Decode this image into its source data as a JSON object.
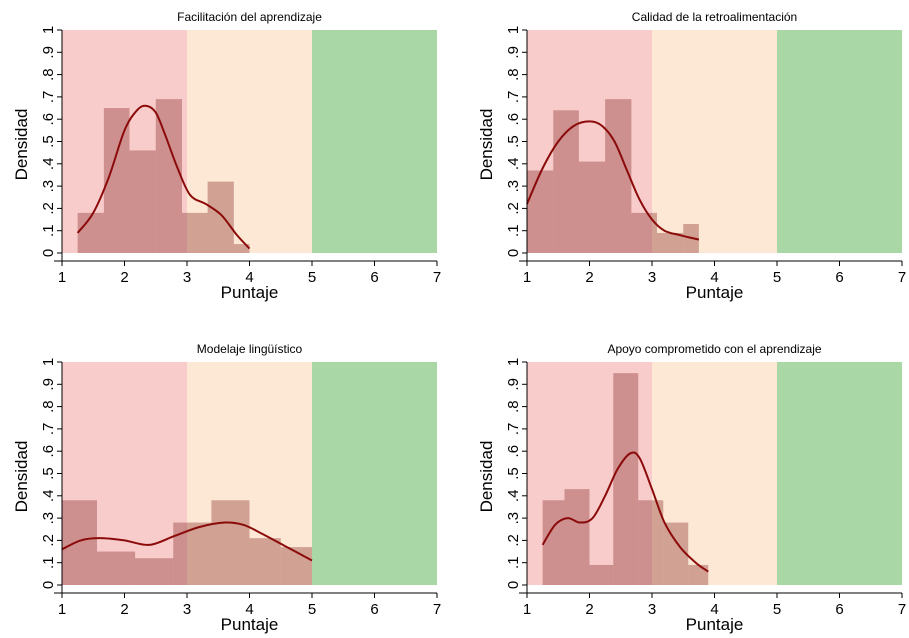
{
  "figure": {
    "zone_colors": {
      "low": "#f9cccc",
      "mid": "#fde8d5",
      "high": "#a9d8a6"
    },
    "bar_color": "#7f1d1d",
    "bar_opacity": 0.35,
    "curve_color": "#8b0a0a"
  },
  "chart_data": [
    {
      "type": "histogram",
      "title": "Facilitación del aprendizaje",
      "xlabel": "Puntaje",
      "ylabel": "Densidad",
      "xlim": [
        1,
        7
      ],
      "ylim": [
        0,
        1
      ],
      "x_ticks": [
        "1",
        "2",
        "3",
        "4",
        "5",
        "6",
        "7"
      ],
      "y_ticks": [
        "0",
        ".1",
        ".2",
        ".3",
        ".4",
        ".5",
        ".6",
        ".7",
        ".8",
        ".9",
        "1"
      ],
      "zones": [
        {
          "from": 1,
          "to": 3,
          "level": "low"
        },
        {
          "from": 3,
          "to": 5,
          "level": "mid"
        },
        {
          "from": 5,
          "to": 7,
          "level": "high"
        }
      ],
      "bins": [
        {
          "x0": 1.25,
          "x1": 1.67,
          "density": 0.18
        },
        {
          "x0": 1.67,
          "x1": 2.08,
          "density": 0.65
        },
        {
          "x0": 2.08,
          "x1": 2.5,
          "density": 0.46
        },
        {
          "x0": 2.5,
          "x1": 2.92,
          "density": 0.69
        },
        {
          "x0": 2.92,
          "x1": 3.33,
          "density": 0.18
        },
        {
          "x0": 3.33,
          "x1": 3.75,
          "density": 0.32
        },
        {
          "x0": 3.75,
          "x1": 4.0,
          "density": 0.04
        }
      ],
      "density_curve": [
        [
          1.25,
          0.09
        ],
        [
          1.5,
          0.18
        ],
        [
          1.75,
          0.34
        ],
        [
          2.0,
          0.55
        ],
        [
          2.2,
          0.64
        ],
        [
          2.35,
          0.66
        ],
        [
          2.5,
          0.63
        ],
        [
          2.65,
          0.53
        ],
        [
          2.85,
          0.38
        ],
        [
          3.05,
          0.26
        ],
        [
          3.3,
          0.22
        ],
        [
          3.55,
          0.17
        ],
        [
          3.8,
          0.08
        ],
        [
          4.0,
          0.02
        ]
      ]
    },
    {
      "type": "histogram",
      "title": "Calidad de la retroalimentación",
      "xlabel": "Puntaje",
      "ylabel": "Densidad",
      "xlim": [
        1,
        7
      ],
      "ylim": [
        0,
        1
      ],
      "x_ticks": [
        "1",
        "2",
        "3",
        "4",
        "5",
        "6",
        "7"
      ],
      "y_ticks": [
        "0",
        ".1",
        ".2",
        ".3",
        ".4",
        ".5",
        ".6",
        ".7",
        ".8",
        ".9",
        "1"
      ],
      "zones": [
        {
          "from": 1,
          "to": 3,
          "level": "low"
        },
        {
          "from": 3,
          "to": 5,
          "level": "mid"
        },
        {
          "from": 5,
          "to": 7,
          "level": "high"
        }
      ],
      "bins": [
        {
          "x0": 1.0,
          "x1": 1.42,
          "density": 0.37
        },
        {
          "x0": 1.42,
          "x1": 1.83,
          "density": 0.64
        },
        {
          "x0": 1.83,
          "x1": 2.25,
          "density": 0.41
        },
        {
          "x0": 2.25,
          "x1": 2.67,
          "density": 0.69
        },
        {
          "x0": 2.67,
          "x1": 3.08,
          "density": 0.18
        },
        {
          "x0": 3.08,
          "x1": 3.5,
          "density": 0.09
        },
        {
          "x0": 3.5,
          "x1": 3.75,
          "density": 0.13
        }
      ],
      "density_curve": [
        [
          1.0,
          0.22
        ],
        [
          1.25,
          0.38
        ],
        [
          1.5,
          0.5
        ],
        [
          1.75,
          0.57
        ],
        [
          2.0,
          0.59
        ],
        [
          2.2,
          0.57
        ],
        [
          2.4,
          0.5
        ],
        [
          2.6,
          0.37
        ],
        [
          2.8,
          0.24
        ],
        [
          3.0,
          0.15
        ],
        [
          3.2,
          0.1
        ],
        [
          3.45,
          0.08
        ],
        [
          3.75,
          0.06
        ]
      ]
    },
    {
      "type": "histogram",
      "title": "Modelaje lingüístico",
      "xlabel": "Puntaje",
      "ylabel": "Densidad",
      "xlim": [
        1,
        7
      ],
      "ylim": [
        0,
        1
      ],
      "x_ticks": [
        "1",
        "2",
        "3",
        "4",
        "5",
        "6",
        "7"
      ],
      "y_ticks": [
        "0",
        ".1",
        ".2",
        ".3",
        ".4",
        ".5",
        ".6",
        ".7",
        ".8",
        ".9",
        "1"
      ],
      "zones": [
        {
          "from": 1,
          "to": 3,
          "level": "low"
        },
        {
          "from": 3,
          "to": 5,
          "level": "mid"
        },
        {
          "from": 5,
          "to": 7,
          "level": "high"
        }
      ],
      "bins": [
        {
          "x0": 1.0,
          "x1": 1.56,
          "density": 0.38
        },
        {
          "x0": 1.56,
          "x1": 2.17,
          "density": 0.15
        },
        {
          "x0": 2.17,
          "x1": 2.78,
          "density": 0.12
        },
        {
          "x0": 2.78,
          "x1": 3.39,
          "density": 0.28
        },
        {
          "x0": 3.39,
          "x1": 4.0,
          "density": 0.38
        },
        {
          "x0": 4.0,
          "x1": 4.5,
          "density": 0.21
        },
        {
          "x0": 4.5,
          "x1": 5.0,
          "density": 0.17
        }
      ],
      "density_curve": [
        [
          1.0,
          0.16
        ],
        [
          1.3,
          0.2
        ],
        [
          1.6,
          0.21
        ],
        [
          2.0,
          0.2
        ],
        [
          2.4,
          0.18
        ],
        [
          2.8,
          0.22
        ],
        [
          3.2,
          0.26
        ],
        [
          3.6,
          0.28
        ],
        [
          3.9,
          0.27
        ],
        [
          4.2,
          0.23
        ],
        [
          4.6,
          0.17
        ],
        [
          5.0,
          0.11
        ]
      ]
    },
    {
      "type": "histogram",
      "title": "Apoyo comprometido con el aprendizaje",
      "xlabel": "Puntaje",
      "ylabel": "Densidad",
      "xlim": [
        1,
        7
      ],
      "ylim": [
        0,
        1
      ],
      "x_ticks": [
        "1",
        "2",
        "3",
        "4",
        "5",
        "6",
        "7"
      ],
      "y_ticks": [
        "0",
        ".1",
        ".2",
        ".3",
        ".4",
        ".5",
        ".6",
        ".7",
        ".8",
        ".9",
        "1"
      ],
      "zones": [
        {
          "from": 1,
          "to": 3,
          "level": "low"
        },
        {
          "from": 3,
          "to": 5,
          "level": "mid"
        },
        {
          "from": 5,
          "to": 7,
          "level": "high"
        }
      ],
      "bins": [
        {
          "x0": 1.25,
          "x1": 1.6,
          "density": 0.38
        },
        {
          "x0": 1.6,
          "x1": 2.0,
          "density": 0.43
        },
        {
          "x0": 2.0,
          "x1": 2.38,
          "density": 0.09
        },
        {
          "x0": 2.38,
          "x1": 2.78,
          "density": 0.95
        },
        {
          "x0": 2.78,
          "x1": 3.18,
          "density": 0.38
        },
        {
          "x0": 3.18,
          "x1": 3.58,
          "density": 0.28
        },
        {
          "x0": 3.58,
          "x1": 3.9,
          "density": 0.09
        }
      ],
      "density_curve": [
        [
          1.25,
          0.18
        ],
        [
          1.45,
          0.27
        ],
        [
          1.65,
          0.3
        ],
        [
          1.85,
          0.28
        ],
        [
          2.05,
          0.3
        ],
        [
          2.25,
          0.4
        ],
        [
          2.45,
          0.52
        ],
        [
          2.65,
          0.59
        ],
        [
          2.8,
          0.57
        ],
        [
          3.0,
          0.43
        ],
        [
          3.2,
          0.28
        ],
        [
          3.45,
          0.17
        ],
        [
          3.7,
          0.1
        ],
        [
          3.9,
          0.06
        ]
      ]
    }
  ]
}
